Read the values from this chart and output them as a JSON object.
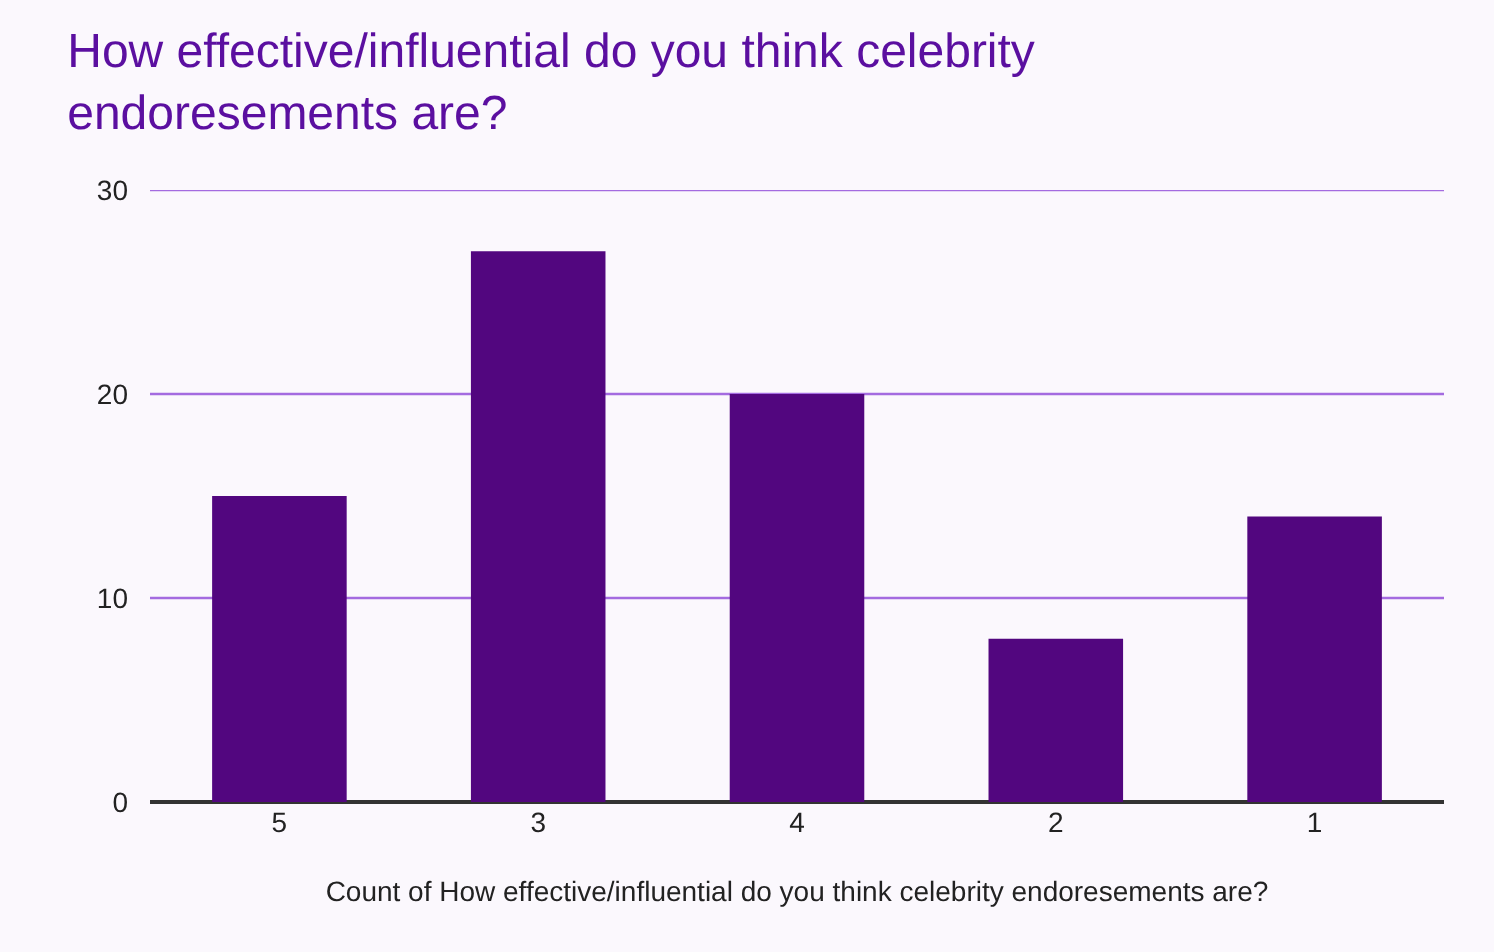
{
  "chart_data": {
    "type": "bar",
    "title": "How effective/influential do you think celebrity endoresements are?",
    "xlabel": "Count of How effective/influential do you think celebrity endoresements are?",
    "categories": [
      "5",
      "3",
      "4",
      "2",
      "1"
    ],
    "values": [
      15,
      27,
      20,
      8,
      14
    ],
    "color": "#52067f",
    "ylim": [
      0,
      30
    ],
    "yticks": [
      0,
      10,
      20,
      30
    ],
    "grid": "y"
  }
}
